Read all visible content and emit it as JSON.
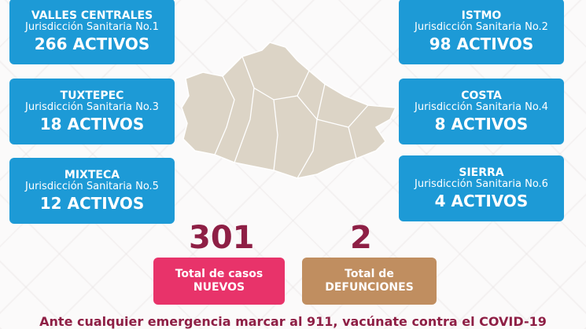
{
  "colors": {
    "region_box": "#1d9ad6",
    "new_cases": "#e8336a",
    "deaths": "#c08e60",
    "maroon": "#8e1f45",
    "map": "#dcd4c6"
  },
  "regions": [
    {
      "name": "VALLES CENTRALES",
      "jurisdiction": "Jurisdicción Sanitaria No.1",
      "active": "266 ACTIVOS"
    },
    {
      "name": "ISTMO",
      "jurisdiction": "Jurisdicción Sanitaria No.2",
      "active": "98 ACTIVOS"
    },
    {
      "name": "TUXTEPEC",
      "jurisdiction": "Jurisdicción Sanitaria No.3",
      "active": "18 ACTIVOS"
    },
    {
      "name": "COSTA",
      "jurisdiction": "Jurisdicción Sanitaria No.4",
      "active": "8 ACTIVOS"
    },
    {
      "name": "MIXTECA",
      "jurisdiction": "Jurisdicción Sanitaria No.5",
      "active": "12 ACTIVOS"
    },
    {
      "name": "SIERRA",
      "jurisdiction": "Jurisdicción Sanitaria No.6",
      "active": "4 ACTIVOS"
    }
  ],
  "totals": {
    "new_cases": {
      "value": "301",
      "line1": "Total de casos",
      "line2": "NUEVOS"
    },
    "deaths": {
      "value": "2",
      "line1": "Total de",
      "line2": "DEFUNCIONES"
    }
  },
  "footer": "Ante cualquier emergencia marcar al 911, vacúnate contra el COVID-19"
}
